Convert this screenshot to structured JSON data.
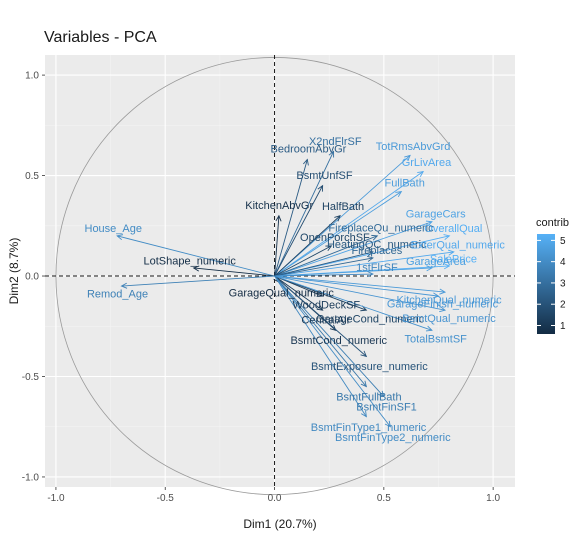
{
  "chart_data": {
    "type": "scatter",
    "subtype": "pca-variable-biplot",
    "title": "Variables - PCA",
    "xlabel": "Dim1 (20.7%)",
    "ylabel": "Dim2 (8.7%)",
    "xlim": [
      -1.05,
      1.1
    ],
    "ylim": [
      -1.05,
      1.1
    ],
    "x_ticks": [
      -1.0,
      -0.5,
      0.0,
      0.5,
      1.0
    ],
    "y_ticks": [
      -1.0,
      -0.5,
      0.0,
      0.5,
      1.0
    ],
    "x_tick_labels": [
      "-1.0",
      "-0.5",
      "0.0",
      "0.5",
      "1.0"
    ],
    "y_tick_labels": [
      "-1.0",
      "-0.5",
      "0.0",
      "0.5",
      "1.0"
    ],
    "grid": true,
    "background": "#ebebeb",
    "unit_circle": true,
    "reference_lines": "dashed at x=0 and y=0",
    "legend": {
      "title": "contrib",
      "placement": "right",
      "min": 0.6,
      "max": 5.3,
      "ticks": [
        1,
        2,
        3,
        4,
        5
      ],
      "tick_labels": [
        "1",
        "2",
        "3",
        "4",
        "5"
      ],
      "color_low": "#132b43",
      "color_high": "#56b1f7"
    },
    "variables": [
      {
        "name": "X2ndFlrSF",
        "x": 0.27,
        "y": 0.62,
        "contrib": 3.0
      },
      {
        "name": "TotRmsAbvGrd",
        "x": 0.62,
        "y": 0.6,
        "contrib": 4.5
      },
      {
        "name": "BedroomAbvGr",
        "x": 0.15,
        "y": 0.58,
        "contrib": 2.3
      },
      {
        "name": "BsmtUnfSF",
        "x": 0.22,
        "y": 0.45,
        "contrib": 1.8
      },
      {
        "name": "GrLivArea",
        "x": 0.68,
        "y": 0.52,
        "contrib": 5.0
      },
      {
        "name": "FullBath",
        "x": 0.58,
        "y": 0.42,
        "contrib": 4.6
      },
      {
        "name": "KitchenAbvGr",
        "x": 0.02,
        "y": 0.3,
        "contrib": 0.8
      },
      {
        "name": "HalfBath",
        "x": 0.3,
        "y": 0.3,
        "contrib": 1.4
      },
      {
        "name": "GarageCars",
        "x": 0.72,
        "y": 0.27,
        "contrib": 4.8
      },
      {
        "name": "House_Age",
        "x": -0.72,
        "y": 0.2,
        "contrib": 4.0
      },
      {
        "name": "OverallQual",
        "x": 0.8,
        "y": 0.2,
        "contrib": 5.2
      },
      {
        "name": "FireplaceQu_numeric",
        "x": 0.47,
        "y": 0.2,
        "contrib": 2.8
      },
      {
        "name": "OpenPorchSF",
        "x": 0.26,
        "y": 0.15,
        "contrib": 1.6
      },
      {
        "name": "HeatingQC_numeric",
        "x": 0.45,
        "y": 0.12,
        "contrib": 2.2
      },
      {
        "name": "ExterQual_numeric",
        "x": 0.82,
        "y": 0.12,
        "contrib": 5.0
      },
      {
        "name": "Fireplaces",
        "x": 0.45,
        "y": 0.09,
        "contrib": 2.7
      },
      {
        "name": "SalePrice",
        "x": 0.8,
        "y": 0.05,
        "contrib": 5.3
      },
      {
        "name": "GarageArea",
        "x": 0.72,
        "y": 0.04,
        "contrib": 4.7
      },
      {
        "name": "LotShape_numeric",
        "x": -0.37,
        "y": 0.04,
        "contrib": 0.7
      },
      {
        "name": "1stFlrSF",
        "x": 0.45,
        "y": 0.01,
        "contrib": 3.8
      },
      {
        "name": "GarageQual_numeric",
        "x": 0.02,
        "y": -0.03,
        "contrib": 0.6
      },
      {
        "name": "Remod_Age",
        "x": -0.7,
        "y": -0.05,
        "contrib": 3.6
      },
      {
        "name": "KitchenQual_numeric",
        "x": 0.78,
        "y": -0.08,
        "contrib": 4.5
      },
      {
        "name": "GarageFinish_numeric",
        "x": 0.75,
        "y": -0.1,
        "contrib": 4.4
      },
      {
        "name": "WoodDeckSF",
        "x": 0.22,
        "y": -0.1,
        "contrib": 1.2
      },
      {
        "name": "GarageCond_numeric",
        "x": 0.42,
        "y": -0.17,
        "contrib": 1.5
      },
      {
        "name": "BsmtQual_numeric",
        "x": 0.78,
        "y": -0.17,
        "contrib": 4.3
      },
      {
        "name": "CentralAir",
        "x": 0.22,
        "y": -0.17,
        "contrib": 1.1
      },
      {
        "name": "TotalBsmtSF",
        "x": 0.72,
        "y": -0.27,
        "contrib": 4.2
      },
      {
        "name": "BsmtCond_numeric",
        "x": 0.28,
        "y": -0.27,
        "contrib": 1.0
      },
      {
        "name": "BsmtExposure_numeric",
        "x": 0.42,
        "y": -0.4,
        "contrib": 2.0
      },
      {
        "name": "BsmtFinSF1",
        "x": 0.5,
        "y": -0.6,
        "contrib": 3.5
      },
      {
        "name": "BsmtFullBath",
        "x": 0.42,
        "y": -0.55,
        "contrib": 3.3
      },
      {
        "name": "BsmtFinType1_numeric",
        "x": 0.42,
        "y": -0.7,
        "contrib": 3.9
      },
      {
        "name": "BsmtFinType2_numeric",
        "x": 0.53,
        "y": -0.75,
        "contrib": 4.0
      }
    ]
  }
}
